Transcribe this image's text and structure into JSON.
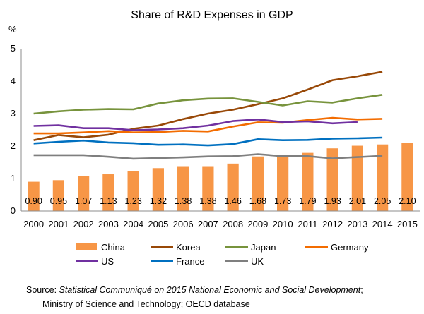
{
  "chart_data": {
    "type": "bar+line",
    "title": "Share of R&D Expenses in GDP",
    "ylabel": "%",
    "xlabel": "",
    "ylim": [
      0,
      5
    ],
    "yticks": [
      "0",
      "1",
      "2",
      "3",
      "4",
      "5"
    ],
    "grid": false,
    "categories": [
      "2000",
      "2001",
      "2002",
      "2003",
      "2004",
      "2005",
      "2006",
      "2007",
      "2008",
      "2009",
      "2010",
      "2011",
      "2012",
      "2013",
      "2014",
      "2015"
    ],
    "bar_series": {
      "name": "China",
      "color": "#F79646",
      "values": [
        0.9,
        0.95,
        1.07,
        1.13,
        1.23,
        1.32,
        1.38,
        1.38,
        1.46,
        1.68,
        1.73,
        1.79,
        1.93,
        2.01,
        2.05,
        2.1
      ],
      "labels": [
        "0.90",
        "0.95",
        "1.07",
        "1.13",
        "1.23",
        "1.32",
        "1.38",
        "1.38",
        "1.46",
        "1.68",
        "1.73",
        "1.79",
        "1.93",
        "2.01",
        "2.05",
        "2.10"
      ]
    },
    "line_series": [
      {
        "name": "Korea",
        "color": "#984807",
        "values": [
          2.18,
          2.34,
          2.27,
          2.35,
          2.53,
          2.63,
          2.83,
          3.0,
          3.12,
          3.29,
          3.47,
          3.74,
          4.03,
          4.15,
          4.29
        ]
      },
      {
        "name": "Japan",
        "color": "#77933C",
        "values": [
          3.0,
          3.07,
          3.12,
          3.14,
          3.13,
          3.31,
          3.41,
          3.46,
          3.47,
          3.36,
          3.25,
          3.38,
          3.34,
          3.47,
          3.58
        ]
      },
      {
        "name": "Germany",
        "color": "#F36C00",
        "values": [
          2.39,
          2.39,
          2.42,
          2.46,
          2.42,
          2.43,
          2.47,
          2.45,
          2.6,
          2.73,
          2.72,
          2.8,
          2.87,
          2.82,
          2.84
        ]
      },
      {
        "name": "US",
        "color": "#7030A0",
        "values": [
          2.62,
          2.64,
          2.55,
          2.55,
          2.49,
          2.51,
          2.55,
          2.63,
          2.77,
          2.82,
          2.74,
          2.76,
          2.7,
          2.74
        ]
      },
      {
        "name": "France",
        "color": "#0070C0",
        "values": [
          2.08,
          2.13,
          2.17,
          2.11,
          2.09,
          2.04,
          2.05,
          2.02,
          2.06,
          2.21,
          2.18,
          2.19,
          2.23,
          2.24,
          2.26
        ]
      },
      {
        "name": "UK",
        "color": "#7F7F7F",
        "values": [
          1.72,
          1.72,
          1.72,
          1.67,
          1.61,
          1.63,
          1.65,
          1.68,
          1.69,
          1.75,
          1.69,
          1.69,
          1.62,
          1.66,
          1.7
        ]
      }
    ],
    "legend": [
      "China",
      "Korea",
      "Japan",
      "Germany",
      "US",
      "France",
      "UK"
    ],
    "legend_position": "bottom"
  },
  "source": {
    "prefix": "Source: ",
    "title": "Statistical Communiqué on 2015 National Economic and Social Development",
    "suffix": ";",
    "line2": "Ministry of Science and Technology; OECD database"
  }
}
